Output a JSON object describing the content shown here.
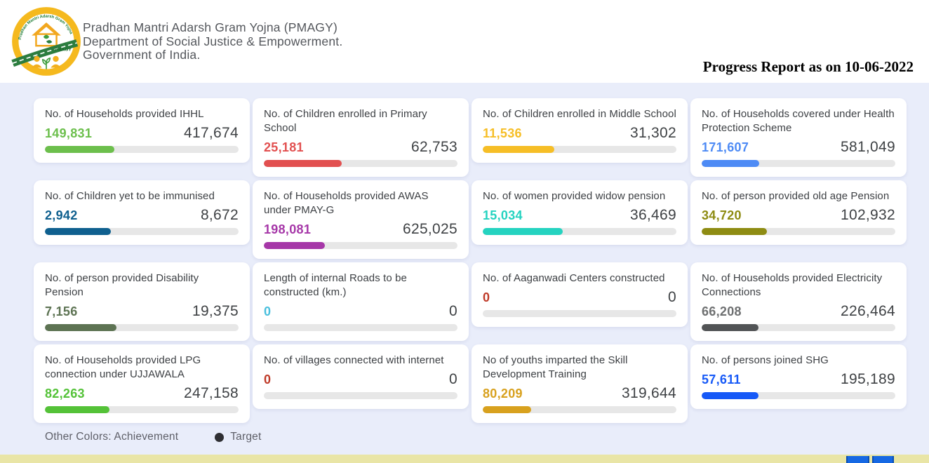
{
  "header": {
    "org_line1": "Pradhan Mantri Adarsh Gram Yojna (PMAGY)",
    "org_line2": "Department of Social Justice & Empowerment.",
    "org_line3": "Government of India.",
    "logo_text": "PMAGY",
    "logo_arc_text": "Pradhan Mantri Adarsh Gram Yojna",
    "report_title": "Progress Report as on 10-06-2022"
  },
  "cards": [
    {
      "title": "No. of Households provided IHHL",
      "achievement": "149,831",
      "target": "417,674",
      "color": "#6cbf4c"
    },
    {
      "title": "No. of Children enrolled in Primary School",
      "achievement": "25,181",
      "target": "62,753",
      "color": "#e25050"
    },
    {
      "title": "No. of Children enrolled in Middle School",
      "achievement": "11,536",
      "target": "31,302",
      "color": "#f6be26"
    },
    {
      "title": "No. of Households covered under Health Protection Scheme",
      "achievement": "171,607",
      "target": "581,049",
      "color": "#4e8bf5"
    },
    {
      "title": "No. of Children yet to be immunised",
      "achievement": "2,942",
      "target": "8,672",
      "color": "#0f608f"
    },
    {
      "title": "No. of Households provided AWAS under PMAY-G",
      "achievement": "198,081",
      "target": "625,025",
      "color": "#a637a8"
    },
    {
      "title": "No. of women provided widow pension",
      "achievement": "15,034",
      "target": "36,469",
      "color": "#25d3c0"
    },
    {
      "title": "No. of person provided old age Pension",
      "achievement": "34,720",
      "target": "102,932",
      "color": "#8e8c13"
    },
    {
      "title": "No. of person provided Disability Pension",
      "achievement": "7,156",
      "target": "19,375",
      "color": "#5d7353"
    },
    {
      "title": "Length of internal Roads to be constructed (km.)",
      "achievement": "0",
      "target": "0",
      "color": "#49bfdd"
    },
    {
      "title": "No. of Aaganwadi Centers constructed",
      "achievement": "0",
      "target": "0",
      "color": "#bf3a28"
    },
    {
      "title": "No. of Households provided Electricity Connections",
      "achievement": "66,208",
      "target": "226,464",
      "color": "#6e7071",
      "bar_color": "#525456"
    },
    {
      "title": "No. of Households provided LPG connection under UJJAWALA",
      "achievement": "82,263",
      "target": "247,158",
      "color": "#54c238"
    },
    {
      "title": "No. of villages connected with internet",
      "achievement": "0",
      "target": "0",
      "color": "#bf3a28"
    },
    {
      "title": "No of youths imparted the Skill Development Training",
      "achievement": "80,209",
      "target": "319,644",
      "color": "#d8a11e"
    },
    {
      "title": "No. of persons joined SHG",
      "achievement": "57,611",
      "target": "195,189",
      "color": "#1659f7"
    }
  ],
  "legend": {
    "achievement_label": "Other Colors: Achievement",
    "target_label": "Target",
    "target_dot_color": "#2f2f33"
  },
  "footer": {
    "strip_color": "#e9e5a6",
    "button_color": "#1668e3"
  }
}
